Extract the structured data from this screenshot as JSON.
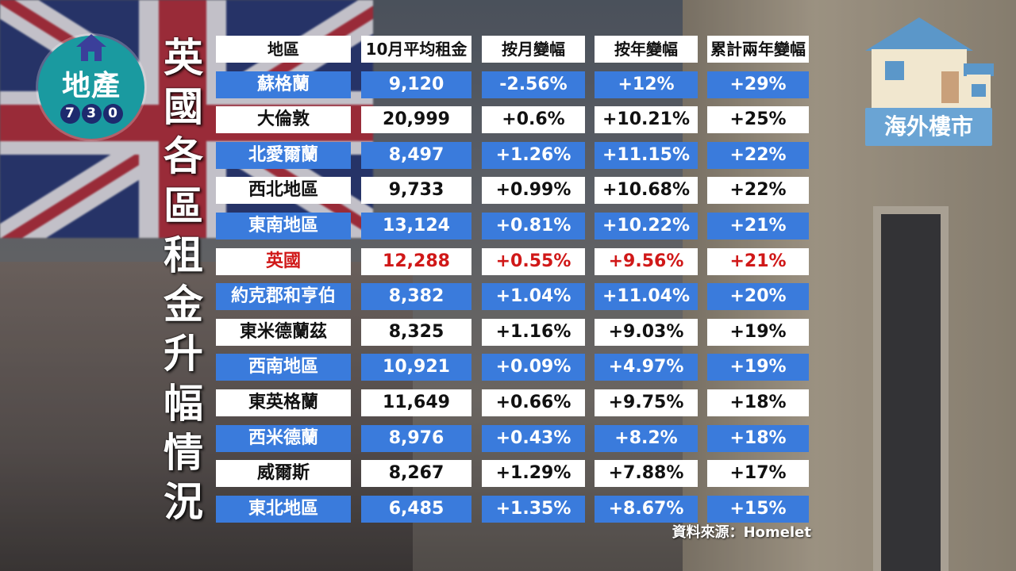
{
  "logo": {
    "name": "地產",
    "digits": [
      "7",
      "3",
      "0"
    ]
  },
  "title": "英國各區租金升幅情況",
  "table": {
    "headers": [
      "地區",
      "10月平均租金",
      "按月變幅",
      "按年變幅",
      "累計兩年變幅"
    ],
    "rows": [
      {
        "style": "blue",
        "cells": [
          "蘇格蘭",
          "9,120",
          "-2.56%",
          "+12%",
          "+29%"
        ]
      },
      {
        "style": "white",
        "cells": [
          "大倫敦",
          "20,999",
          "+0.6%",
          "+10.21%",
          "+25%"
        ]
      },
      {
        "style": "blue",
        "cells": [
          "北愛爾蘭",
          "8,497",
          "+1.26%",
          "+11.15%",
          "+22%"
        ]
      },
      {
        "style": "white",
        "cells": [
          "西北地區",
          "9,733",
          "+0.99%",
          "+10.68%",
          "+22%"
        ]
      },
      {
        "style": "blue",
        "cells": [
          "東南地區",
          "13,124",
          "+0.81%",
          "+10.22%",
          "+21%"
        ]
      },
      {
        "style": "red",
        "cells": [
          "英國",
          "12,288",
          "+0.55%",
          "+9.56%",
          "+21%"
        ]
      },
      {
        "style": "blue",
        "cells": [
          "約克郡和亨伯",
          "8,382",
          "+1.04%",
          "+11.04%",
          "+20%"
        ]
      },
      {
        "style": "white",
        "cells": [
          "東米德蘭茲",
          "8,325",
          "+1.16%",
          "+9.03%",
          "+19%"
        ]
      },
      {
        "style": "blue",
        "cells": [
          "西南地區",
          "10,921",
          "+0.09%",
          "+4.97%",
          "+19%"
        ]
      },
      {
        "style": "white",
        "cells": [
          "東英格蘭",
          "11,649",
          "+0.66%",
          "+9.75%",
          "+18%"
        ]
      },
      {
        "style": "blue",
        "cells": [
          "西米德蘭",
          "8,976",
          "+0.43%",
          "+8.2%",
          "+18%"
        ]
      },
      {
        "style": "white",
        "cells": [
          "威爾斯",
          "8,267",
          "+1.29%",
          "+7.88%",
          "+17%"
        ]
      },
      {
        "style": "blue",
        "cells": [
          "東北地區",
          "6,485",
          "+1.35%",
          "+8.67%",
          "+15%"
        ]
      }
    ]
  },
  "source": "資料來源：Homelet",
  "badge": {
    "label": "海外樓市",
    "icon": "house-icon"
  },
  "colors": {
    "row_blue": "#3a7bdc",
    "row_white": "#ffffff",
    "highlight_red": "#d01818",
    "logo_teal": "#1a9aa0",
    "badge_blue": "#6aa4d4"
  }
}
